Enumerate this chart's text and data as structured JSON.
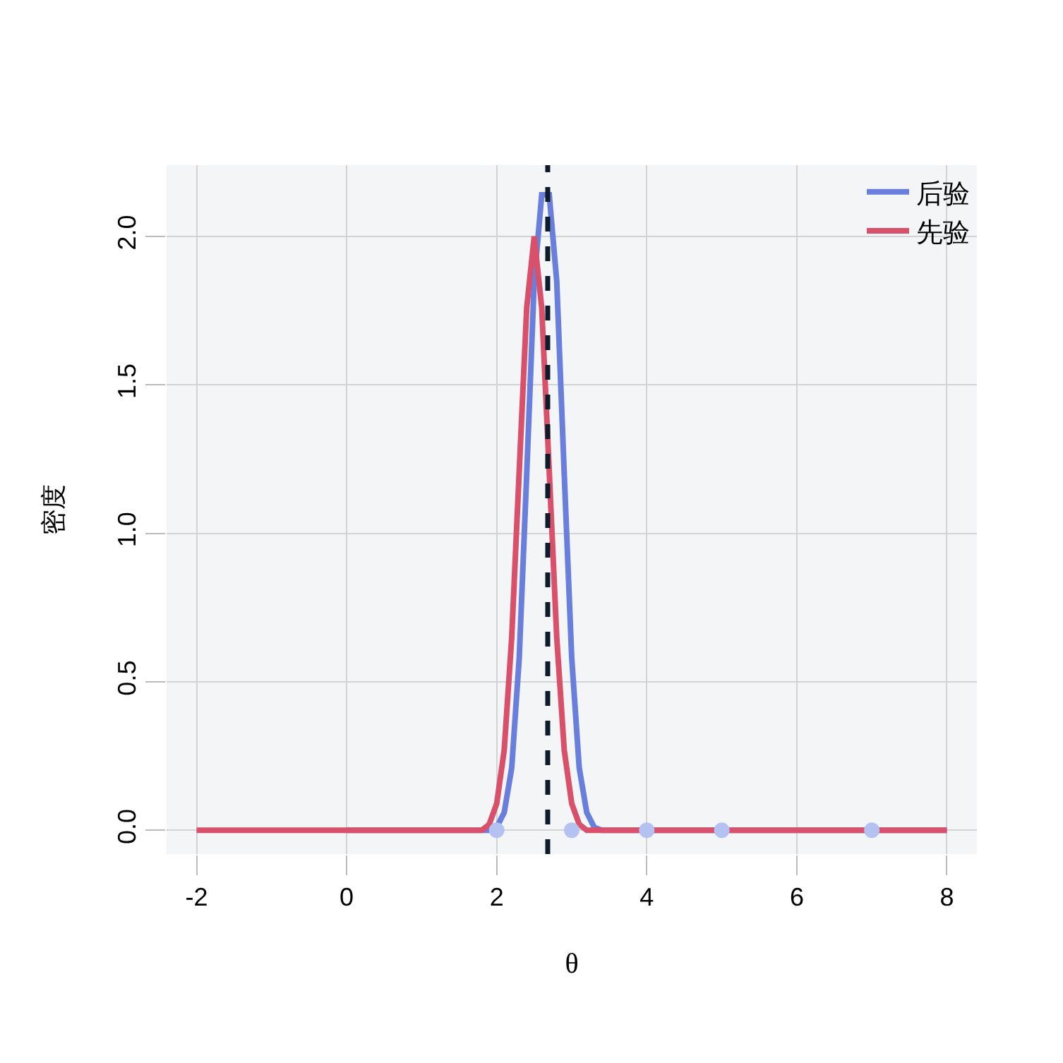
{
  "chart_data": {
    "type": "line",
    "xlabel": "θ",
    "ylabel": "密度",
    "xlim": [
      -2.4,
      8.4
    ],
    "xticks": [
      -2,
      0,
      2,
      4,
      6,
      8
    ],
    "ylim": [
      -0.08,
      2.24
    ],
    "yticks": [
      {
        "value": 0,
        "label": "0.0"
      },
      0.5,
      {
        "value": 1,
        "label": "1.0"
      },
      1.5,
      {
        "value": 2,
        "label": "2.0"
      }
    ],
    "grid": true,
    "legend": "top right",
    "marker": "none",
    "line_style": "solid",
    "series": [
      {
        "name": "后验",
        "color": "#6a7fdb",
        "x": [
          0,
          1.9,
          2.0,
          2.1,
          2.2,
          2.3,
          2.4,
          2.5,
          2.6,
          2.7,
          2.8,
          2.9,
          3.0,
          3.1,
          3.2,
          3.3,
          3.4,
          3.5,
          8
        ],
        "values": [
          0,
          0,
          0.01,
          0.06,
          0.21,
          0.58,
          1.2,
          1.85,
          2.14,
          2.14,
          1.85,
          1.2,
          0.58,
          0.21,
          0.06,
          0.01,
          0,
          0,
          0
        ]
      },
      {
        "name": "先验",
        "color": "#d9506a",
        "x": [
          -2,
          1.8,
          1.9,
          2.0,
          2.1,
          2.2,
          2.3,
          2.4,
          2.5,
          2.6,
          2.7,
          2.8,
          2.9,
          3.0,
          3.1,
          3.2,
          8
        ],
        "values": [
          0,
          0,
          0.02,
          0.09,
          0.27,
          0.65,
          1.21,
          1.76,
          2.0,
          1.76,
          1.21,
          0.65,
          0.27,
          0.09,
          0.02,
          0,
          0
        ]
      },
      {
        "type": "scatter",
        "color": "#b4c2f2",
        "marker": "circle",
        "x": [
          2,
          3,
          4,
          5,
          7
        ],
        "values": [
          0,
          0,
          0,
          0,
          0
        ]
      }
    ],
    "ref_lines": [
      {
        "axis": "x",
        "value": 2.68,
        "color": "#0d1b2a",
        "line_style": "dashed"
      }
    ]
  }
}
